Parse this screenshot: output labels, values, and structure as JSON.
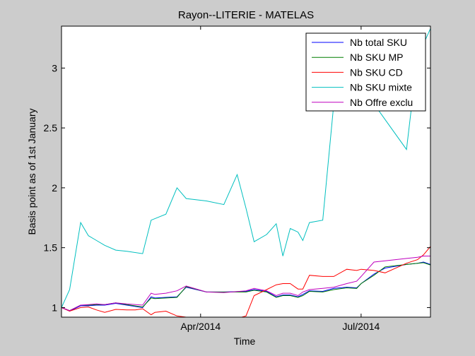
{
  "chart_data": {
    "type": "line",
    "title": "Rayon--LITERIE - MATELAS",
    "xlabel": "Time",
    "ylabel": "Basis point as of 1st January",
    "x_ticks": [
      {
        "label": "Apr/2014",
        "x": 0.377
      },
      {
        "label": "Jul/2014",
        "x": 0.812
      }
    ],
    "xlim": [
      0,
      1
    ],
    "ylim": [
      0.92,
      3.35
    ],
    "y_ticks": [
      {
        "label": "1",
        "y": 1
      },
      {
        "label": "1.5",
        "y": 1.5
      },
      {
        "label": "2",
        "y": 2
      },
      {
        "label": "2.5",
        "y": 2.5
      },
      {
        "label": "3",
        "y": 3
      }
    ],
    "grid": false,
    "legend_position": "top-right",
    "series": [
      {
        "name": "Nb total SKU",
        "color": "#0000ff",
        "x": [
          0,
          0.022,
          0.052,
          0.073,
          0.095,
          0.117,
          0.147,
          0.177,
          0.22,
          0.243,
          0.253,
          0.283,
          0.313,
          0.338,
          0.393,
          0.44,
          0.5,
          0.522,
          0.556,
          0.582,
          0.6,
          0.62,
          0.641,
          0.654,
          0.672,
          0.708,
          0.738,
          0.773,
          0.8,
          0.812,
          0.847,
          0.877,
          0.935,
          0.965,
          0.981,
          1
        ],
        "y": [
          1,
          0.97,
          1.015,
          1.015,
          1.02,
          1.02,
          1.035,
          1.02,
          1.0,
          1.09,
          1.08,
          1.085,
          1.09,
          1.17,
          1.13,
          1.13,
          1.135,
          1.15,
          1.135,
          1.09,
          1.105,
          1.105,
          1.09,
          1.11,
          1.14,
          1.135,
          1.16,
          1.17,
          1.165,
          1.2,
          1.28,
          1.33,
          1.36,
          1.37,
          1.38,
          1.36
        ]
      },
      {
        "name": "Nb SKU MP",
        "color": "#007f00",
        "x": [
          0,
          0.022,
          0.052,
          0.073,
          0.095,
          0.117,
          0.147,
          0.177,
          0.22,
          0.243,
          0.253,
          0.283,
          0.313,
          0.338,
          0.393,
          0.44,
          0.5,
          0.522,
          0.556,
          0.582,
          0.6,
          0.62,
          0.641,
          0.654,
          0.672,
          0.708,
          0.738,
          0.773,
          0.8,
          0.812,
          0.847,
          0.877,
          0.935,
          0.965,
          0.981,
          1
        ],
        "y": [
          1,
          0.975,
          1.02,
          1.02,
          1.025,
          1.025,
          1.04,
          1.025,
          1.005,
          1.08,
          1.075,
          1.08,
          1.085,
          1.175,
          1.13,
          1.13,
          1.13,
          1.145,
          1.13,
          1.085,
          1.1,
          1.1,
          1.085,
          1.1,
          1.135,
          1.13,
          1.15,
          1.165,
          1.16,
          1.2,
          1.27,
          1.34,
          1.36,
          1.37,
          1.375,
          1.355
        ]
      },
      {
        "name": "Nb SKU CD",
        "color": "#ff0000",
        "x": [
          0,
          0.022,
          0.052,
          0.073,
          0.095,
          0.117,
          0.147,
          0.177,
          0.2,
          0.22,
          0.243,
          0.253,
          0.283,
          0.313,
          0.338,
          0.393,
          0.44,
          0.5,
          0.522,
          0.556,
          0.582,
          0.6,
          0.62,
          0.641,
          0.654,
          0.672,
          0.708,
          0.738,
          0.773,
          0.8,
          0.812,
          0.847,
          0.877,
          0.935,
          0.965,
          0.981,
          1
        ],
        "y": [
          1,
          0.97,
          1.0,
          1.005,
          0.98,
          0.96,
          0.985,
          0.98,
          0.98,
          0.99,
          0.94,
          0.96,
          0.97,
          0.93,
          0.92,
          0.9,
          0.88,
          0.93,
          1.1,
          1.15,
          1.19,
          1.2,
          1.2,
          1.155,
          1.155,
          1.27,
          1.26,
          1.26,
          1.32,
          1.31,
          1.32,
          1.31,
          1.29,
          1.37,
          1.4,
          1.44,
          1.51
        ]
      },
      {
        "name": "Nb SKU mixte",
        "color": "#00bfbf",
        "x": [
          0,
          0.022,
          0.052,
          0.073,
          0.095,
          0.117,
          0.147,
          0.177,
          0.22,
          0.243,
          0.283,
          0.313,
          0.338,
          0.393,
          0.44,
          0.476,
          0.5,
          0.522,
          0.556,
          0.582,
          0.6,
          0.62,
          0.641,
          0.654,
          0.672,
          0.708,
          0.738,
          0.773,
          0.8,
          0.812,
          0.935,
          0.965,
          0.981,
          1
        ],
        "y": [
          1,
          1.15,
          1.71,
          1.6,
          1.56,
          1.52,
          1.48,
          1.47,
          1.45,
          1.73,
          1.78,
          2.0,
          1.91,
          1.89,
          1.86,
          2.11,
          1.83,
          1.55,
          1.61,
          1.7,
          1.43,
          1.66,
          1.63,
          1.56,
          1.71,
          1.73,
          2.7,
          2.8,
          2.82,
          2.85,
          2.32,
          3.1,
          3.2,
          3.33
        ]
      },
      {
        "name": "Nb Offre exclu",
        "color": "#bf00bf",
        "x": [
          0,
          0.022,
          0.052,
          0.073,
          0.095,
          0.117,
          0.147,
          0.177,
          0.22,
          0.243,
          0.253,
          0.283,
          0.313,
          0.338,
          0.393,
          0.44,
          0.5,
          0.522,
          0.556,
          0.582,
          0.6,
          0.62,
          0.641,
          0.654,
          0.672,
          0.708,
          0.738,
          0.773,
          0.8,
          0.812,
          0.847,
          0.877,
          0.935,
          0.965,
          0.981,
          1
        ],
        "y": [
          1,
          0.975,
          1.02,
          1.025,
          1.03,
          1.025,
          1.04,
          1.03,
          1.02,
          1.12,
          1.11,
          1.12,
          1.14,
          1.18,
          1.13,
          1.125,
          1.14,
          1.16,
          1.14,
          1.1,
          1.12,
          1.12,
          1.1,
          1.13,
          1.15,
          1.16,
          1.17,
          1.2,
          1.22,
          1.26,
          1.38,
          1.39,
          1.41,
          1.42,
          1.43,
          1.43
        ]
      }
    ]
  }
}
